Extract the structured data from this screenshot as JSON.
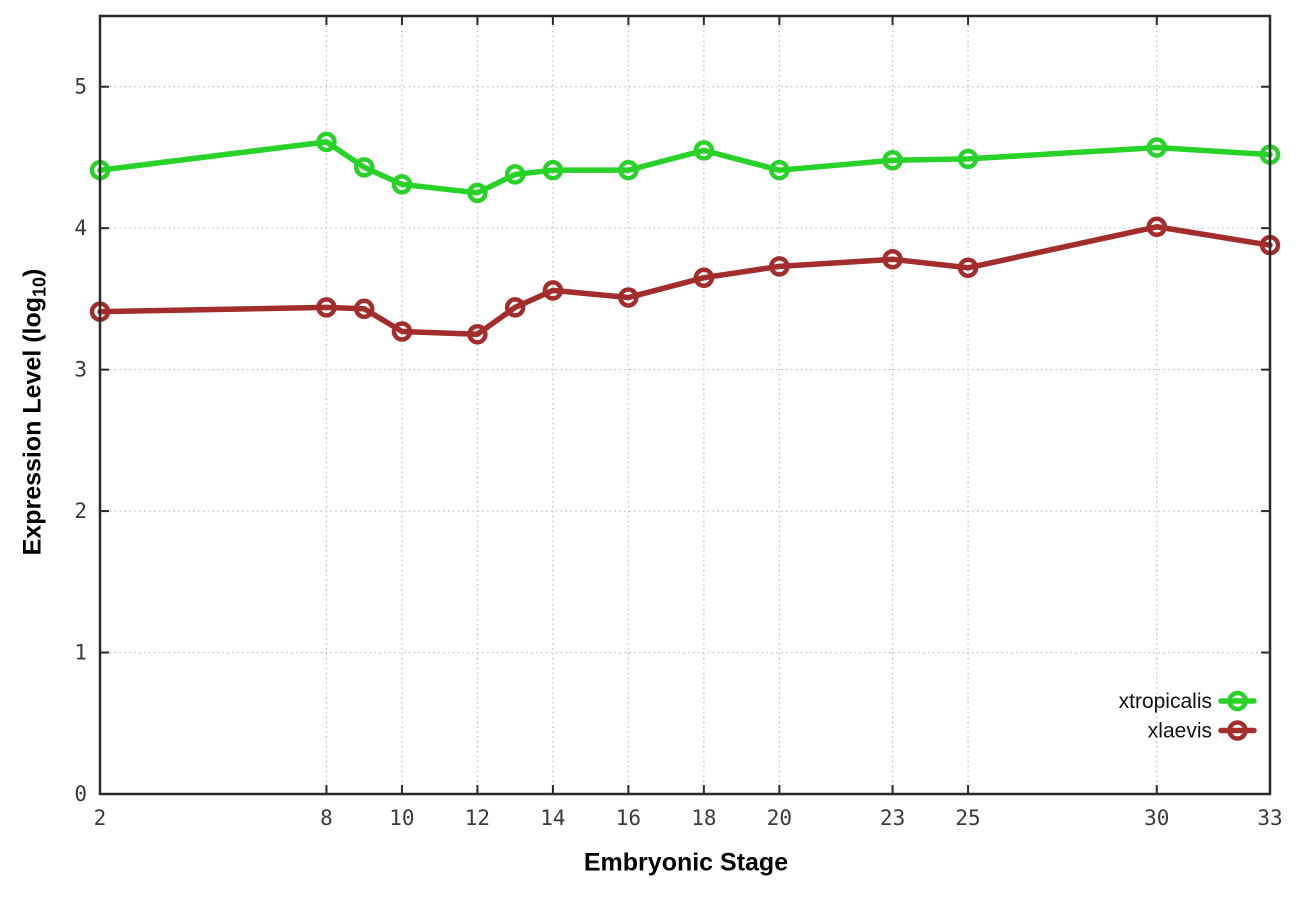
{
  "chart_data": {
    "type": "line",
    "title": "",
    "xlabel": "Embryonic Stage",
    "ylabel": "Expression Level (log10)",
    "x": [
      2,
      8,
      9,
      10,
      12,
      13,
      14,
      16,
      18,
      20,
      23,
      25,
      30,
      33
    ],
    "series": [
      {
        "name": "xtropicalis",
        "color": "#28d228",
        "values": [
          4.41,
          4.61,
          4.43,
          4.31,
          4.25,
          4.38,
          4.41,
          4.41,
          4.55,
          4.41,
          4.48,
          4.49,
          4.57,
          4.52
        ]
      },
      {
        "name": "xlaevis",
        "color": "#a32c2c",
        "values": [
          3.41,
          3.44,
          3.43,
          3.27,
          3.25,
          3.44,
          3.56,
          3.51,
          3.65,
          3.73,
          3.78,
          3.72,
          4.01,
          3.88
        ]
      }
    ],
    "xticks": [
      2,
      8,
      10,
      12,
      14,
      16,
      18,
      20,
      23,
      25,
      30,
      33
    ],
    "yticks": [
      0,
      1,
      2,
      3,
      4,
      5
    ],
    "xlim": [
      2,
      33
    ],
    "ylim": [
      0,
      5.5
    ],
    "grid": true,
    "legend_position": "bottom-right",
    "marker": "open-circle"
  },
  "labels": {
    "xlabel": "Embryonic Stage",
    "ylabel_prefix": "Expression Level (log",
    "ylabel_sub": "10",
    "ylabel_suffix": ")"
  },
  "style": {
    "grid_color": "#bcbcbc",
    "border_color": "#2a2a2a",
    "tick_color": "#2a2a2a",
    "background": "#ffffff"
  }
}
